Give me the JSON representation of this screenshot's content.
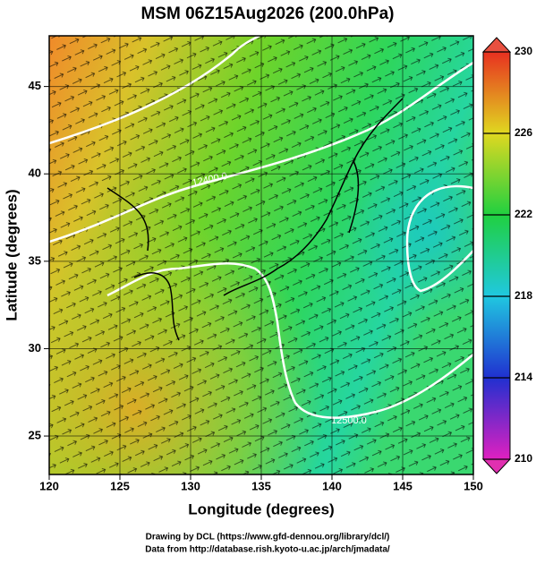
{
  "title": "MSM 06Z15Aug2026 (200.0hPa)",
  "x_axis": {
    "label": "Longitude (degrees)",
    "lim": [
      120,
      150
    ],
    "ticks": [
      120,
      125,
      130,
      135,
      140,
      145,
      150
    ]
  },
  "y_axis": {
    "label": "Latitude  (degrees)",
    "lim": [
      22.8,
      47.9
    ],
    "ticks": [
      25,
      30,
      35,
      40,
      45
    ]
  },
  "colorbar": {
    "lim": [
      210,
      230
    ],
    "ticks": [
      210,
      214,
      218,
      222,
      226,
      230
    ]
  },
  "contour_labels": [
    "12400.0",
    "12500.0"
  ],
  "footer": [
    "Drawing by DCL (https://www.gfd-dennou.org/library/dcl/)",
    "Data from http://database.rish.kyoto-u.ac.jp/arch/jmadata/"
  ]
}
